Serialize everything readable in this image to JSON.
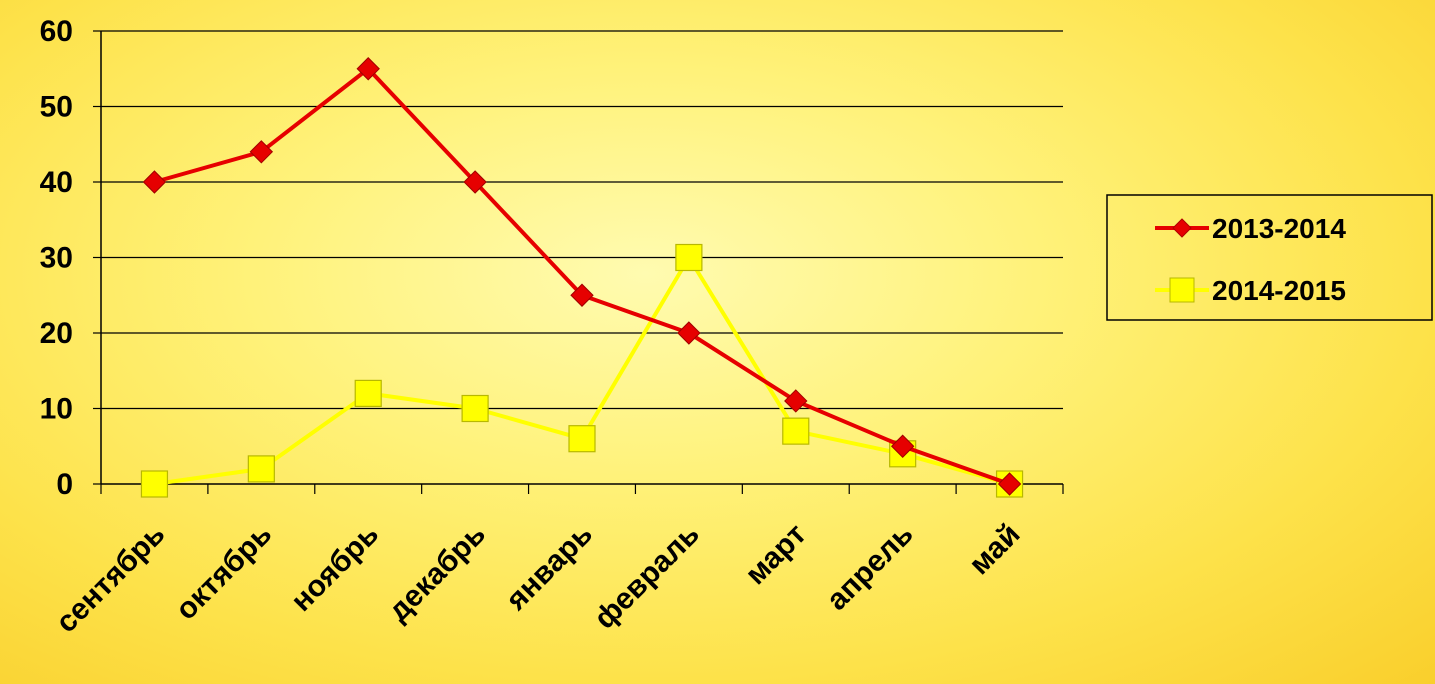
{
  "chart_data": {
    "type": "line",
    "categories": [
      "сентябрь",
      "октябрь",
      "ноябрь",
      "декабрь",
      "январь",
      "февраль",
      "март",
      "апрель",
      "май"
    ],
    "series": [
      {
        "name": "2013-2014",
        "values": [
          40,
          44,
          55,
          40,
          25,
          20,
          11,
          5,
          0
        ],
        "color": "#e60000",
        "marker": "diamond"
      },
      {
        "name": "2014-2015",
        "values": [
          0,
          2,
          12,
          10,
          6,
          30,
          7,
          4,
          0
        ],
        "color": "#ffff00",
        "marker": "square"
      }
    ],
    "yticks": [
      "0",
      "10",
      "20",
      "30",
      "40",
      "50",
      "60"
    ],
    "ylim": [
      0,
      60
    ],
    "grid": true,
    "legend_position": "right"
  }
}
